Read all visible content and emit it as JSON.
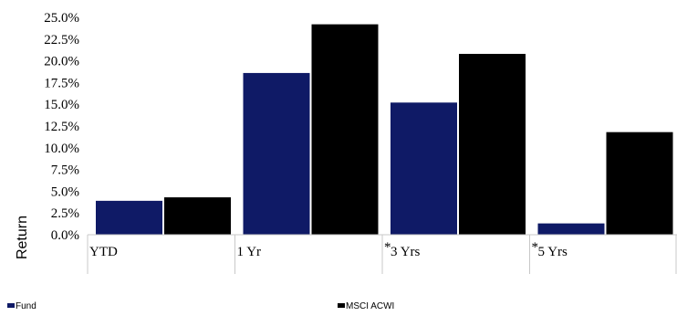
{
  "chart_data": {
    "type": "bar",
    "title": "",
    "xlabel": "",
    "ylabel": "Return",
    "ylim": [
      0,
      25
    ],
    "yticks": [
      "0.0%",
      "2.5%",
      "5.0%",
      "7.5%",
      "10.0%",
      "12.5%",
      "15.0%",
      "17.5%",
      "20.0%",
      "22.5%",
      "25.0%"
    ],
    "ytick_values": [
      0,
      2.5,
      5,
      7.5,
      10,
      12.5,
      15,
      17.5,
      20,
      22.5,
      25
    ],
    "categories": [
      "YTD",
      "1 Yr",
      "3 Yrs",
      "5 Yrs"
    ],
    "category_markers": [
      "",
      "",
      "*",
      "*"
    ],
    "series": [
      {
        "name": "Fund",
        "color": "#0f1a66",
        "values": [
          3.9,
          18.6,
          15.2,
          1.3
        ]
      },
      {
        "name": "MSCI ACWI",
        "color": "#000000",
        "values": [
          4.3,
          24.2,
          20.8,
          11.8
        ]
      }
    ],
    "grid": false,
    "legend": "bottom"
  }
}
